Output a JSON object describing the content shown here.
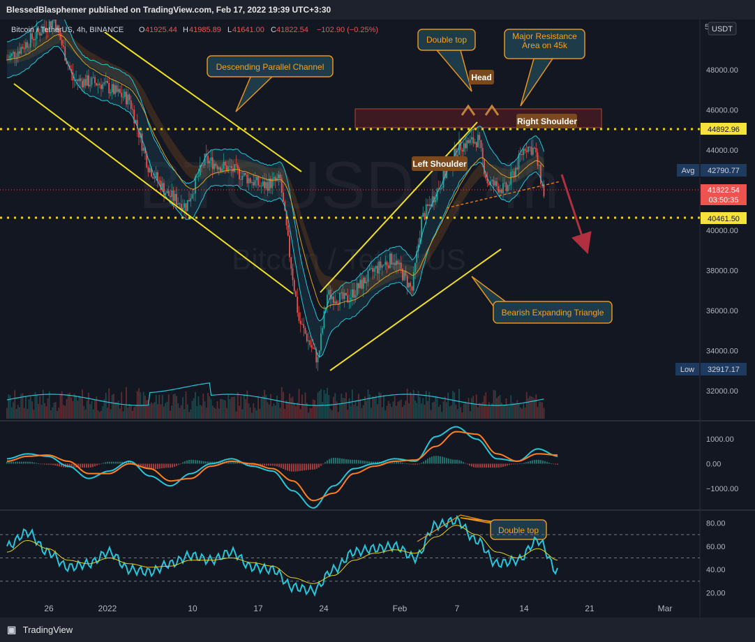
{
  "header": {
    "publish_line": "BlessedBlasphemer published on TradingView.com, Feb 17, 2022 19:39 UTC+3:30"
  },
  "footer": {
    "brand": "TradingView"
  },
  "symbol": {
    "title": "Bitcoin / TetherUS, 4h, BINANCE",
    "open_label": "O",
    "open": "41925.44",
    "high_label": "H",
    "high": "41985.89",
    "low_label": "L",
    "low": "41641.00",
    "close_label": "C",
    "close": "41822.54",
    "change": "−102.90 (−0.25%)",
    "watermark_ticker": "BTCUSDT, 4h",
    "watermark_name": "Bitcoin / TetherUS",
    "currency": "USDT"
  },
  "price_labels": {
    "level_upper": "44892.96",
    "avg_label": "Avg",
    "avg_value": "42790.77",
    "last_price": "41822.54",
    "countdown": "03:50:35",
    "level_lower": "40461.50",
    "low_label": "Low",
    "low_value": "32917.17",
    "top_partial": "5"
  },
  "annotations": [
    {
      "id": "descending-channel",
      "text": "Descending Parallel Channel"
    },
    {
      "id": "double-top",
      "text": "Double top"
    },
    {
      "id": "major-resistance",
      "text": "Major Resistance Area on 45k"
    },
    {
      "id": "head",
      "text": "Head"
    },
    {
      "id": "right-shoulder",
      "text": "Right Shoulder"
    },
    {
      "id": "left-shoulder",
      "text": "Left Shoulder"
    },
    {
      "id": "bearish-triangle",
      "text": "Bearish Expanding Triangle"
    },
    {
      "id": "rsi-double-top",
      "text": "Double top"
    }
  ],
  "colors": {
    "background": "#131722",
    "panel_bar": "#1e222d",
    "up": "#26a69a",
    "down": "#ef5350",
    "trendline": "#f0e020",
    "annotation_fill": "#1e3b4a",
    "annotation_border": "#e8941a",
    "annotation_text": "#f7a21b",
    "cloud": "#7a4a1e",
    "cyan": "#26c6da",
    "orange": "#ff7f1f",
    "level_line": "#e8d020"
  },
  "chart_data": [
    {
      "type": "candlestick",
      "title": "Bitcoin / TetherUS, 4h, BINANCE",
      "y_unit": "USDT",
      "y_ticks": [
        32000,
        34000,
        36000,
        38000,
        40000,
        42000,
        44000,
        46000,
        48000
      ],
      "y_tick_labels": [
        "32000.00",
        "34000.00",
        "36000.00",
        "38000.00",
        "40000.00",
        "42000.00",
        "44000.00",
        "46000.00",
        "48000.00"
      ],
      "ylim": [
        30500,
        50500
      ],
      "x_ticks": [
        "26",
        "2022",
        "10",
        "17",
        "24",
        "Feb",
        "7",
        "14",
        "21",
        "Mar"
      ],
      "approx_path": [
        {
          "date": "2021-12-22",
          "price": 48500
        },
        {
          "date": "2021-12-27",
          "price": 50500
        },
        {
          "date": "2021-12-29",
          "price": 47500
        },
        {
          "date": "2022-01-01",
          "price": 47300
        },
        {
          "date": "2022-01-04",
          "price": 46500
        },
        {
          "date": "2022-01-06",
          "price": 43200
        },
        {
          "date": "2022-01-08",
          "price": 41800
        },
        {
          "date": "2022-01-10",
          "price": 41200
        },
        {
          "date": "2022-01-12",
          "price": 43500
        },
        {
          "date": "2022-01-15",
          "price": 43000
        },
        {
          "date": "2022-01-18",
          "price": 42200
        },
        {
          "date": "2022-01-20",
          "price": 42500
        },
        {
          "date": "2022-01-21",
          "price": 38800
        },
        {
          "date": "2022-01-22",
          "price": 35500
        },
        {
          "date": "2022-01-24",
          "price": 33500
        },
        {
          "date": "2022-01-25",
          "price": 36800
        },
        {
          "date": "2022-01-27",
          "price": 36500
        },
        {
          "date": "2022-01-30",
          "price": 38000
        },
        {
          "date": "2022-02-01",
          "price": 38600
        },
        {
          "date": "2022-02-03",
          "price": 37000
        },
        {
          "date": "2022-02-04",
          "price": 40500
        },
        {
          "date": "2022-02-06",
          "price": 42300
        },
        {
          "date": "2022-02-08",
          "price": 44200
        },
        {
          "date": "2022-02-10",
          "price": 44500
        },
        {
          "date": "2022-02-11",
          "price": 42400
        },
        {
          "date": "2022-02-13",
          "price": 42000
        },
        {
          "date": "2022-02-15",
          "price": 44200
        },
        {
          "date": "2022-02-16",
          "price": 44000
        },
        {
          "date": "2022-02-17",
          "price": 41822.54
        }
      ],
      "levels": [
        44892.96,
        40461.5
      ],
      "avg": 42790.77,
      "last": 41822.54,
      "low": 32917.17
    },
    {
      "type": "line",
      "title": "MACD",
      "y_ticks": [
        1000,
        0,
        -1000
      ],
      "y_tick_labels": [
        "1000.00",
        "0.00",
        "−1000.00"
      ],
      "ylim": [
        -1800,
        1600
      ],
      "series": [
        {
          "values": [
            200,
            400,
            300,
            -100,
            -600,
            -300,
            100,
            -500,
            -900,
            -400,
            0,
            200,
            -100,
            -300,
            -1100,
            -1800,
            -900,
            -200,
            0,
            200,
            100,
            1100,
            1500,
            1000,
            200,
            100,
            600,
            300
          ]
        },
        {
          "values": [
            100,
            300,
            350,
            100,
            -400,
            -400,
            0,
            -200,
            -700,
            -600,
            -100,
            100,
            0,
            -200,
            -700,
            -1500,
            -1200,
            -400,
            -100,
            100,
            150,
            700,
            1300,
            1200,
            400,
            100,
            400,
            350
          ]
        }
      ]
    },
    {
      "type": "line",
      "title": "RSI",
      "y_ticks": [
        80,
        60,
        40,
        20
      ],
      "y_tick_labels": [
        "80.00",
        "60.00",
        "40.00",
        "20.00"
      ],
      "ylim": [
        15,
        88
      ],
      "bands": [
        70,
        50,
        30
      ],
      "series": [
        {
          "values": [
            60,
            72,
            55,
            42,
            45,
            55,
            40,
            38,
            45,
            52,
            48,
            55,
            42,
            40,
            25,
            22,
            40,
            55,
            58,
            60,
            50,
            78,
            82,
            65,
            45,
            48,
            65,
            38
          ]
        },
        {
          "values": [
            55,
            65,
            58,
            48,
            45,
            50,
            45,
            42,
            43,
            48,
            48,
            50,
            46,
            43,
            33,
            28,
            35,
            48,
            54,
            57,
            54,
            68,
            78,
            70,
            55,
            50,
            58,
            48
          ]
        }
      ]
    }
  ]
}
